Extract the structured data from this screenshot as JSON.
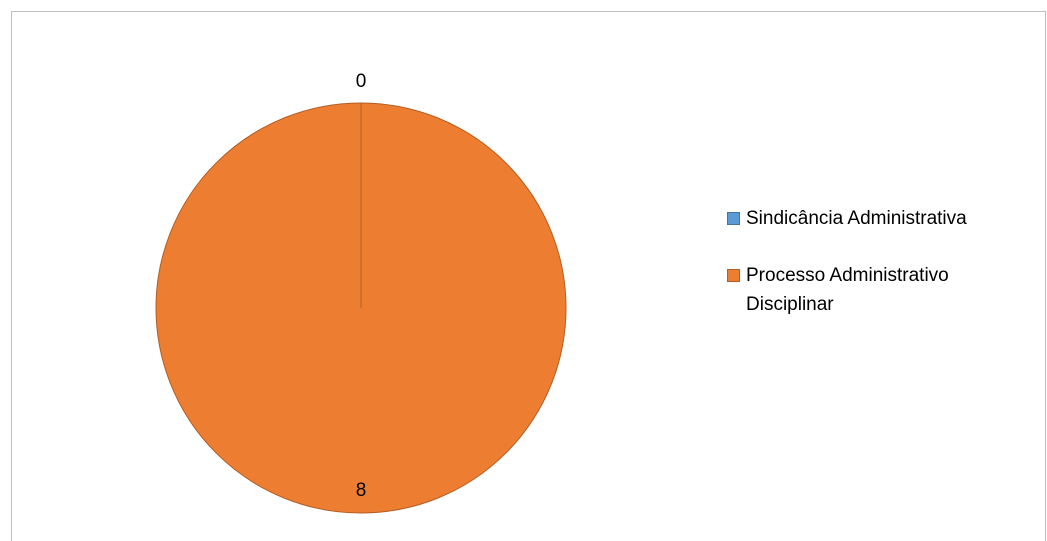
{
  "chart_data": {
    "type": "pie",
    "categories": [
      "Sindicância Administrativa",
      "Processo Administrativo Disciplinar"
    ],
    "values": [
      0,
      8
    ],
    "data_labels": [
      "0",
      "8"
    ],
    "colors": [
      "#5b9bd5",
      "#ed7d31"
    ],
    "legend_position": "right",
    "title": ""
  },
  "legend": {
    "items": [
      {
        "label": "Sindicância Administrativa",
        "color": "#5b9bd5"
      },
      {
        "label": "Processo Administrativo Disciplinar",
        "color": "#ed7d31"
      }
    ]
  }
}
